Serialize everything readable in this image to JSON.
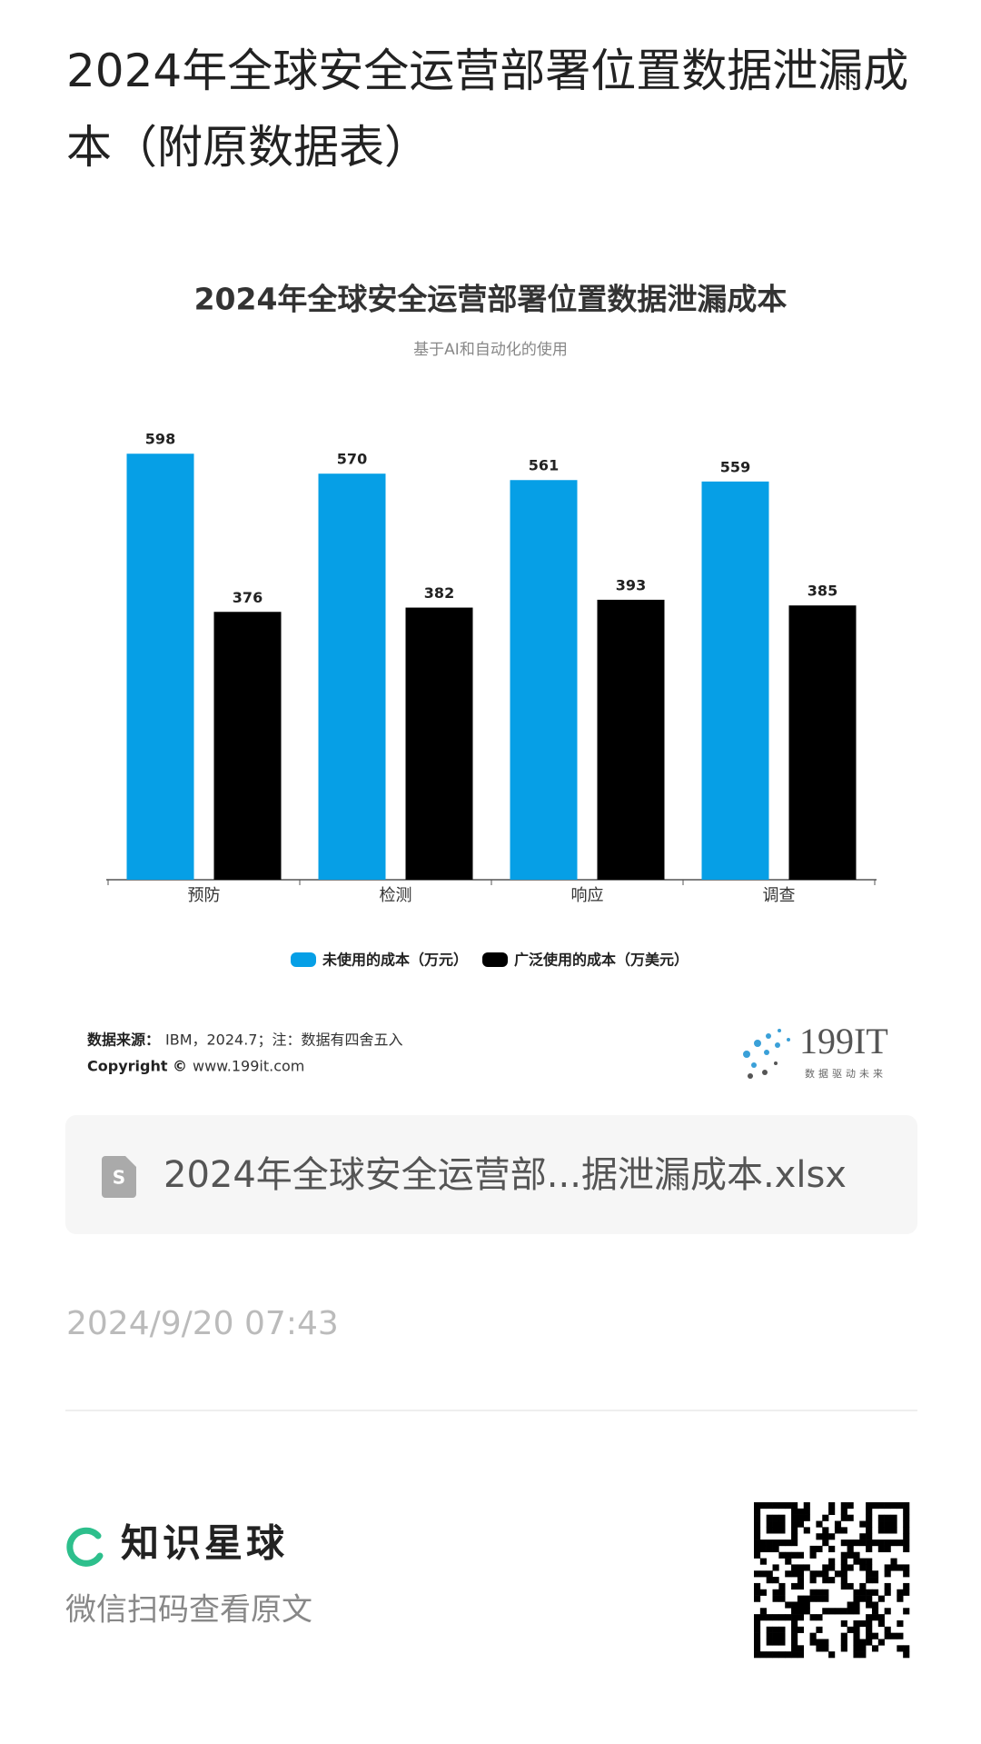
{
  "page": {
    "title": "2024年全球安全运营部署位置数据泄漏成本（附原数据表）",
    "file_name": "2024年全球安全运营部...据泄漏成本.xlsx",
    "timestamp": "2024/9/20 07:43",
    "brand": "知识星球",
    "scan_hint": "微信扫码查看原文"
  },
  "chart_data": {
    "type": "bar",
    "title": "2024年全球安全运营部署位置数据泄漏成本",
    "subtitle": "基于AI和自动化的使用",
    "categories": [
      "预防",
      "检测",
      "响应",
      "调查"
    ],
    "series": [
      {
        "name": "未使用的成本（万元）",
        "color": "#069fe6",
        "values": [
          598,
          570,
          561,
          559
        ]
      },
      {
        "name": "广泛使用的成本（万美元）",
        "color": "#000000",
        "values": [
          376,
          382,
          393,
          385
        ]
      }
    ],
    "ylim": [
      0,
      620
    ],
    "legend": "bottom",
    "source_label": "数据来源：",
    "source": "IBM，2024.7；注：数据有四舍五入",
    "copyright_label": "Copyright ©",
    "copyright": "www.199it.com",
    "logo": "199IT",
    "logo_tagline": "数据驱动未来"
  }
}
